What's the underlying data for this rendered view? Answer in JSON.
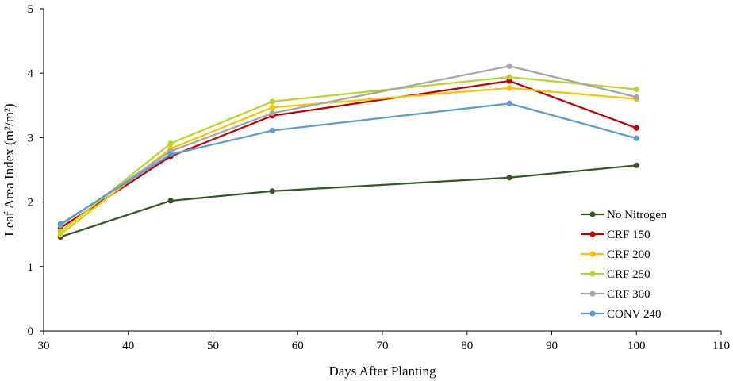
{
  "chart_data": {
    "type": "line",
    "xlabel": "Days After Planting",
    "ylabel": "Leaf Area Index (m²/m²)",
    "xlim": [
      30,
      110
    ],
    "ylim": [
      0,
      5
    ],
    "xticks": [
      30,
      40,
      50,
      60,
      70,
      80,
      90,
      100,
      110
    ],
    "yticks": [
      0,
      1,
      2,
      3,
      4,
      5
    ],
    "grid": false,
    "legend_position": "right",
    "x": [
      32,
      45,
      57,
      85,
      100
    ],
    "series": [
      {
        "name": "No Nitrogen",
        "color": "#375623",
        "values": [
          1.46,
          2.02,
          2.17,
          2.38,
          2.57
        ]
      },
      {
        "name": "CRF 150",
        "color": "#C00000",
        "values": [
          1.6,
          2.71,
          3.34,
          3.88,
          3.15
        ]
      },
      {
        "name": "CRF 200",
        "color": "#FFC000",
        "values": [
          1.5,
          2.83,
          3.47,
          3.77,
          3.6
        ]
      },
      {
        "name": "CRF 250",
        "color": "#B4D82A",
        "values": [
          1.54,
          2.91,
          3.56,
          3.94,
          3.75
        ]
      },
      {
        "name": "CRF 300",
        "color": "#A5A5A5",
        "values": [
          1.64,
          2.79,
          3.38,
          4.11,
          3.63
        ]
      },
      {
        "name": "CONV 240",
        "color": "#5B9BD5",
        "values": [
          1.66,
          2.74,
          3.11,
          3.53,
          2.99
        ]
      }
    ]
  }
}
